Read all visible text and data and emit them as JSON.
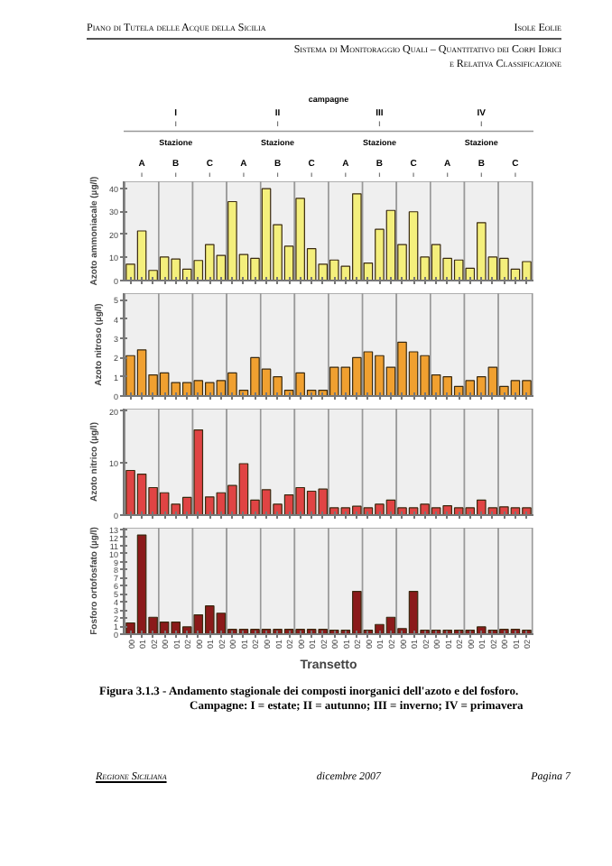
{
  "chart_data": [
    {
      "type": "bar",
      "ylabel": "Azoto ammoniacale (µg/l)",
      "tick_labels": "y",
      "grid": false,
      "color": "#f4ef7c",
      "annotations": [
        "Piano di Tutela delle Acque della Sicilia",
        "Isole Eolie",
        "Sistema di Monitoraggio Quali – Quantitativo dei Corpi Idrici",
        "e Relativa Classificazione",
        "campagne",
        "I",
        "II",
        "III",
        "IV",
        "Stazione",
        "Stazione",
        "Stazione",
        "Stazione",
        "A",
        "B",
        "C",
        "A",
        "B",
        "C",
        "A",
        "B",
        "C",
        "A",
        "B",
        "C"
      ],
      "categories": [
        "00",
        "01",
        "02",
        "00",
        "01",
        "02",
        "00",
        "01",
        "02",
        "00",
        "01",
        "02",
        "00",
        "01",
        "02",
        "00",
        "01",
        "02",
        "00",
        "01",
        "02",
        "00",
        "01",
        "02",
        "00",
        "01",
        "02",
        "00",
        "01",
        "02",
        "00",
        "01",
        "02",
        "00",
        "01",
        "02"
      ],
      "values": [
        7.1,
        21.5,
        4.4,
        10.2,
        9.3,
        4.9,
        8.7,
        15.6,
        10.9,
        34.2,
        11.3,
        9.6,
        39.8,
        24.2,
        14.9,
        35.6,
        13.8,
        7.1,
        8.9,
        6.2,
        37.6,
        7.6,
        22.2,
        30.4,
        15.6,
        29.8,
        10.2,
        15.6,
        9.6,
        8.9,
        5.3,
        25.1,
        10.2,
        9.6,
        4.9,
        8.2
      ],
      "ylim": [
        0,
        43
      ],
      "yticks": [
        0,
        10,
        20,
        30,
        40
      ]
    },
    {
      "type": "bar",
      "ylabel": "Azoto nitroso (µg/l)",
      "tick_labels": "y",
      "grid": false,
      "color": "#f0a030",
      "categories": [
        "00",
        "01",
        "02",
        "00",
        "01",
        "02",
        "00",
        "01",
        "02",
        "00",
        "01",
        "02",
        "00",
        "01",
        "02",
        "00",
        "01",
        "02",
        "00",
        "01",
        "02",
        "00",
        "01",
        "02",
        "00",
        "01",
        "02",
        "00",
        "01",
        "02",
        "00",
        "01",
        "02",
        "00",
        "01",
        "02"
      ],
      "values": [
        2.1,
        2.4,
        1.1,
        1.2,
        0.7,
        0.7,
        0.8,
        0.7,
        0.8,
        1.2,
        0.3,
        2.0,
        1.4,
        1.0,
        0.3,
        1.2,
        0.3,
        0.3,
        1.5,
        1.5,
        2.0,
        2.3,
        2.1,
        1.5,
        2.8,
        2.3,
        2.1,
        1.1,
        1.0,
        0.5,
        0.8,
        1.0,
        1.5,
        0.5,
        0.8,
        0.8
      ],
      "ylim": [
        0,
        5.35
      ],
      "yticks": [
        0,
        1,
        2,
        3,
        4,
        5
      ]
    },
    {
      "type": "bar",
      "ylabel": "Azoto nitrico (µg/l)",
      "tick_labels": "y",
      "grid": false,
      "color": "#e04444",
      "categories": [
        "00",
        "01",
        "02",
        "00",
        "01",
        "02",
        "00",
        "01",
        "02",
        "00",
        "01",
        "02",
        "00",
        "01",
        "02",
        "00",
        "01",
        "02",
        "00",
        "01",
        "02",
        "00",
        "01",
        "02",
        "00",
        "01",
        "02",
        "00",
        "01",
        "02",
        "00",
        "01",
        "02",
        "00",
        "01",
        "02"
      ],
      "values": [
        8.6,
        7.9,
        5.3,
        4.3,
        2.1,
        3.4,
        16.4,
        3.5,
        4.3,
        5.7,
        9.9,
        2.9,
        4.9,
        2.1,
        3.9,
        5.3,
        4.6,
        5.0,
        1.4,
        1.4,
        1.7,
        1.4,
        2.1,
        2.9,
        1.4,
        1.4,
        2.1,
        1.4,
        1.8,
        1.4,
        1.4,
        2.9,
        1.4,
        1.6,
        1.4,
        1.4
      ],
      "ylim": [
        0,
        20.5
      ],
      "yticks": [
        0,
        10,
        20
      ]
    },
    {
      "type": "bar",
      "ylabel": "Fosforo ortofosfato (µg/l)",
      "xlabel": "Transetto",
      "grid": false,
      "color": "#8b1a1a",
      "annotations": [
        "Figura 3.1.3 - Andamento stagionale dei composti inorganici dell'azoto e del fosforo. Campagne: I = estate; II = autunno; III = inverno; IV = primavera",
        "Regione Siciliana",
        "dicembre 2007",
        "Pagina 7"
      ],
      "categories": [
        "00",
        "01",
        "02",
        "00",
        "01",
        "02",
        "00",
        "01",
        "02",
        "00",
        "01",
        "02",
        "00",
        "01",
        "02",
        "00",
        "01",
        "02",
        "00",
        "01",
        "02",
        "00",
        "01",
        "02",
        "00",
        "01",
        "02",
        "00",
        "01",
        "02",
        "00",
        "01",
        "02",
        "00",
        "01",
        "02"
      ],
      "values": [
        1.4,
        12.3,
        2.1,
        1.5,
        1.5,
        0.9,
        2.4,
        3.5,
        2.6,
        0.6,
        0.6,
        0.6,
        0.6,
        0.6,
        0.6,
        0.6,
        0.6,
        0.6,
        0.5,
        0.5,
        5.3,
        0.5,
        1.2,
        2.1,
        0.7,
        5.3,
        0.5,
        0.5,
        0.5,
        0.5,
        0.5,
        0.9,
        0.5,
        0.6,
        0.6,
        0.5
      ],
      "ylim": [
        0,
        13.2
      ],
      "yticks": [
        0,
        1,
        2,
        3,
        4,
        5,
        6,
        7,
        8,
        9,
        10,
        11,
        12,
        13
      ]
    }
  ]
}
